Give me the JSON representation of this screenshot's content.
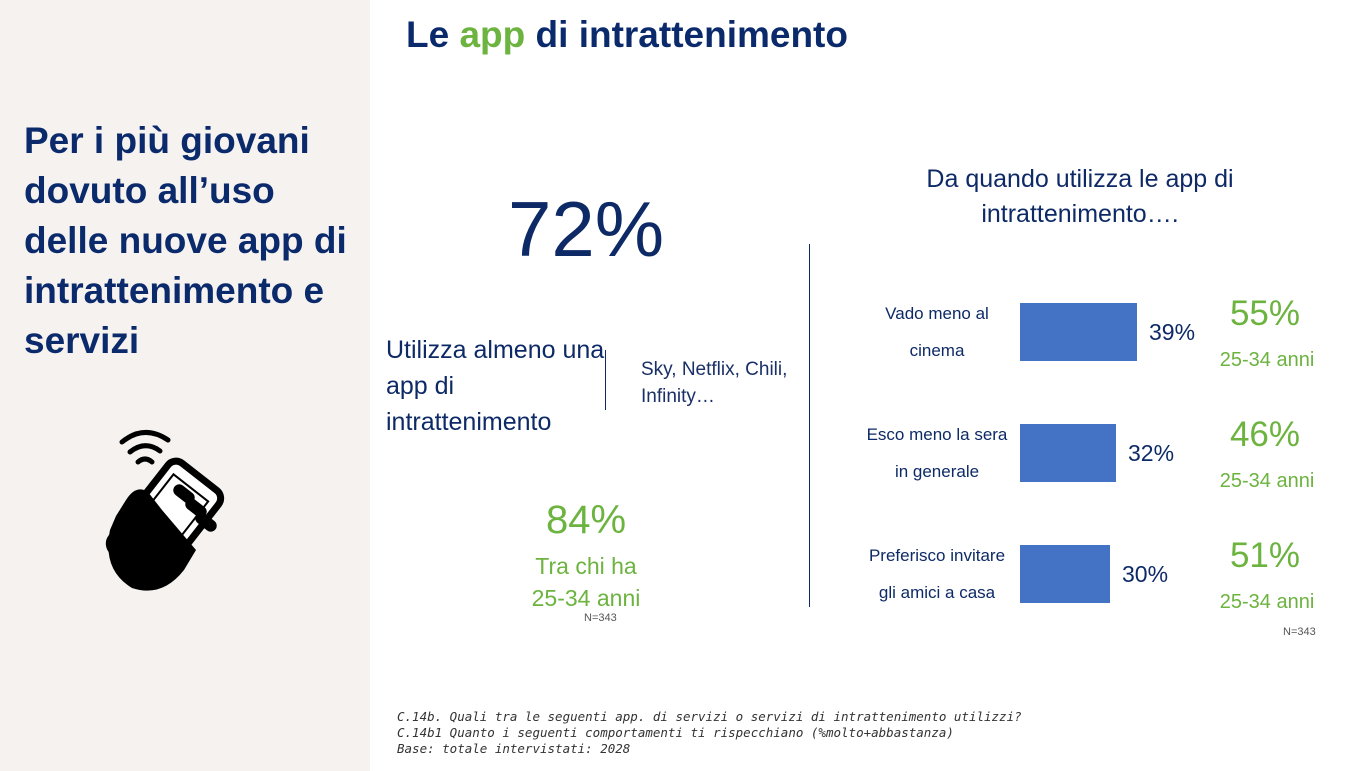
{
  "title": {
    "part1": "Le ",
    "accent": "app",
    "part2": " di intrattenimento"
  },
  "sidebar": {
    "headline": "Per i più giovani dovuto all’uso delle nuove app di intrattenimento e servizi"
  },
  "usage": {
    "percent": "72%",
    "label": "Utilizza almeno una app di intrattenimento",
    "examples": "Sky, Netflix, Chili, Infinity…",
    "young_percent": "84%",
    "young_label_line1": "Tra chi ha",
    "young_label_line2": "25-34 anni",
    "base_note": "N=343"
  },
  "chart_data": {
    "type": "bar",
    "orientation": "horizontal",
    "title": "Da quando utilizza le app di intrattenimento….",
    "categories": [
      [
        "Vado meno al",
        "cinema"
      ],
      [
        "Esco meno la sera",
        "in generale"
      ],
      [
        "Preferisco invitare",
        "gli amici a casa"
      ]
    ],
    "series": [
      {
        "values": [
          39,
          32,
          30
        ],
        "color": "#4472c4"
      }
    ],
    "value_labels": [
      "39%",
      "32%",
      "30%"
    ],
    "highlight": {
      "values": [
        "55%",
        "46%",
        "51%"
      ],
      "label": "25-34 anni",
      "color": "#6cb33f"
    },
    "base_note": "N=343"
  },
  "footnote": {
    "line1": "C.14b. Quali tra le seguenti app. di servizi o servizi di intrattenimento utilizzi?",
    "line2": "C.14b1 Quanto i seguenti comportamenti ti rispecchiano (%molto+abbastanza)",
    "line3": "Base: totale intervistati: 2028"
  },
  "colors": {
    "navy": "#0d2a66",
    "green": "#6cb33f",
    "bar": "#4472c4",
    "sidebar_bg": "#f5f2f0"
  },
  "icons": {
    "sidebar": "hand-holding-phone-wifi-icon"
  }
}
